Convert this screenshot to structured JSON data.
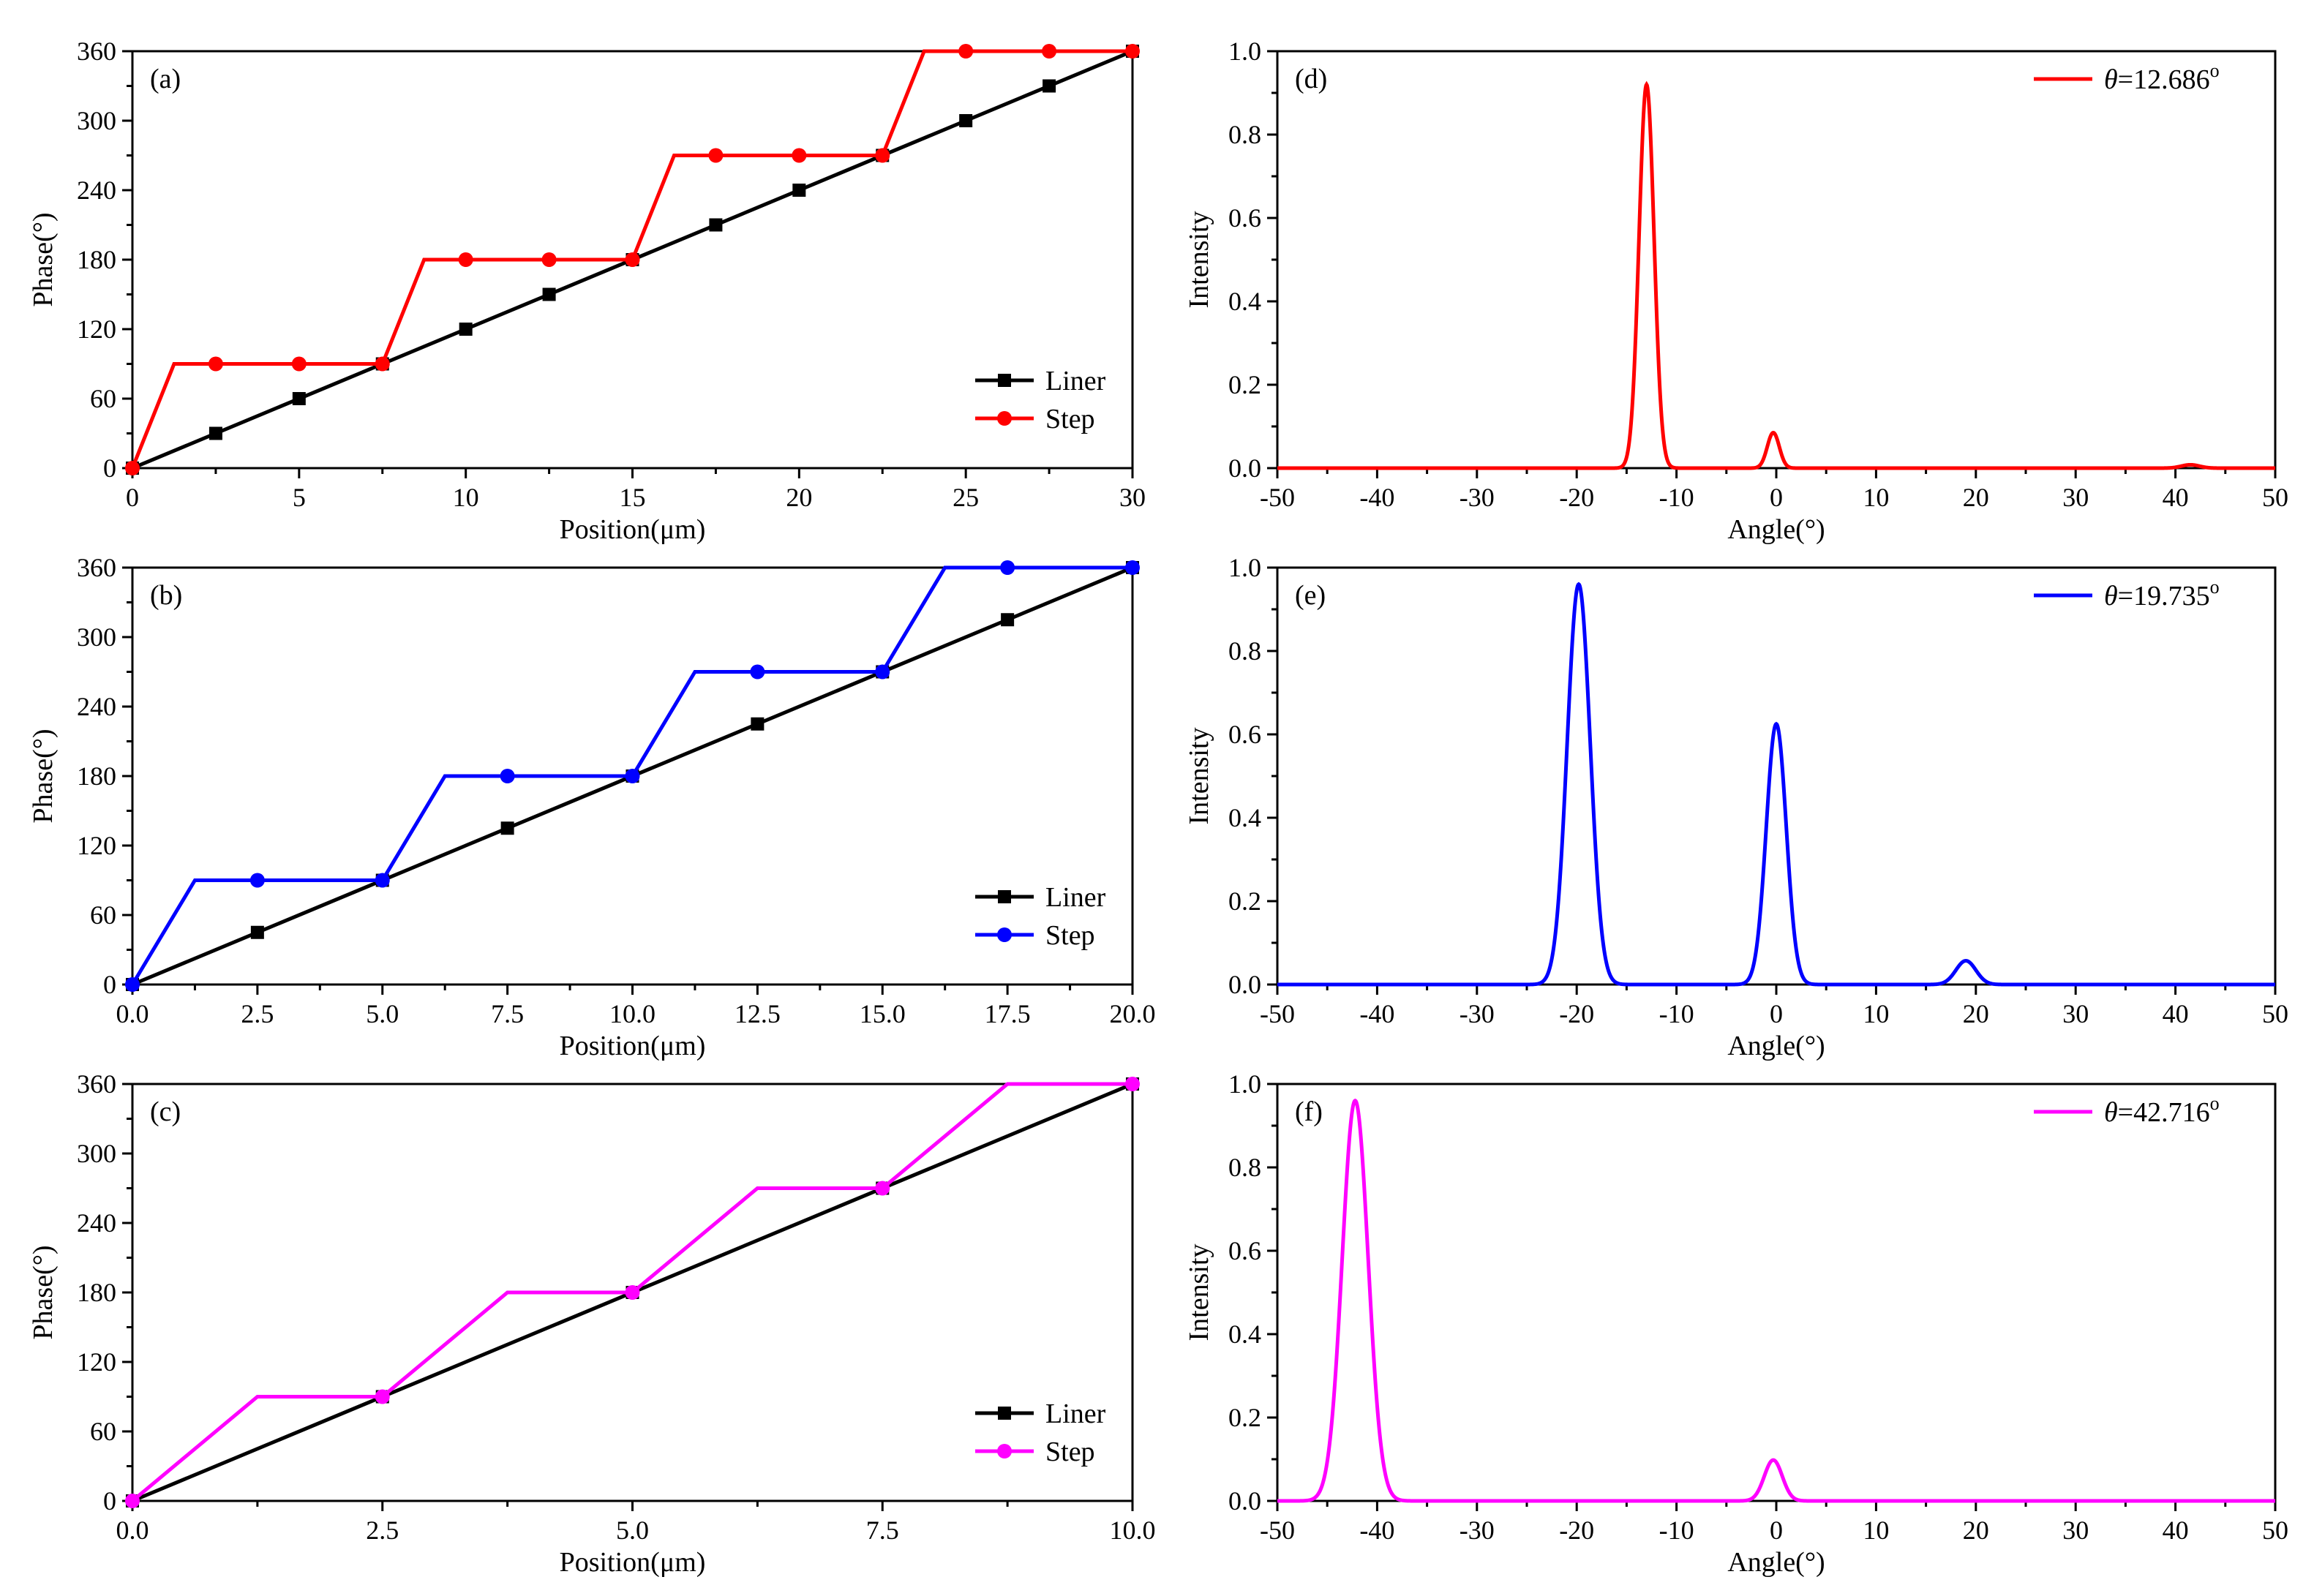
{
  "chart_data": [
    {
      "panel": "(a)",
      "type": "line",
      "xlabel": "Position(μm)",
      "ylabel": "Phase(°)",
      "xlim": [
        0,
        30
      ],
      "ylim": [
        0,
        360
      ],
      "xticks": [
        0,
        5,
        10,
        15,
        20,
        25,
        30
      ],
      "xtick_labels": [
        "0",
        "5",
        "10",
        "15",
        "20",
        "25",
        "30"
      ],
      "yticks": [
        0,
        60,
        120,
        180,
        240,
        300,
        360
      ],
      "ytick_labels": [
        "0",
        "60",
        "120",
        "180",
        "240",
        "300",
        "360"
      ],
      "legend_loc": "lower-right",
      "series": [
        {
          "name": "Liner",
          "color": "#000000",
          "marker": "square",
          "x": [
            0,
            30
          ],
          "y": [
            0,
            360
          ],
          "marker_x": [
            0,
            2.5,
            5,
            7.5,
            10,
            12.5,
            15,
            17.5,
            20,
            22.5,
            25,
            27.5,
            30
          ],
          "marker_y": [
            0,
            30,
            60,
            90,
            120,
            150,
            180,
            210,
            240,
            270,
            300,
            330,
            360
          ]
        },
        {
          "name": "Step",
          "color": "#ff0000",
          "marker": "circle",
          "x": [
            0,
            1.25,
            7.5,
            8.75,
            15,
            16.25,
            22.5,
            23.75,
            30
          ],
          "y": [
            0,
            90,
            90,
            180,
            180,
            270,
            270,
            360,
            360
          ],
          "marker_x": [
            0,
            2.5,
            5,
            7.5,
            10,
            12.5,
            15,
            17.5,
            20,
            22.5,
            25,
            27.5,
            30
          ],
          "marker_y": [
            0,
            90,
            90,
            90,
            180,
            180,
            180,
            270,
            270,
            270,
            360,
            360,
            360
          ]
        }
      ]
    },
    {
      "panel": "(b)",
      "type": "line",
      "xlabel": "Position(μm)",
      "ylabel": "Phase(°)",
      "xlim": [
        0,
        20
      ],
      "ylim": [
        0,
        360
      ],
      "xticks": [
        0,
        2.5,
        5,
        7.5,
        10,
        12.5,
        15,
        17.5,
        20
      ],
      "xtick_labels": [
        "0.0",
        "2.5",
        "5.0",
        "7.5",
        "10.0",
        "12.5",
        "15.0",
        "17.5",
        "20.0"
      ],
      "yticks": [
        0,
        60,
        120,
        180,
        240,
        300,
        360
      ],
      "ytick_labels": [
        "0",
        "60",
        "120",
        "180",
        "240",
        "300",
        "360"
      ],
      "legend_loc": "lower-right",
      "series": [
        {
          "name": "Liner",
          "color": "#000000",
          "marker": "square",
          "x": [
            0,
            20
          ],
          "y": [
            0,
            360
          ],
          "marker_x": [
            0,
            2.5,
            5,
            7.5,
            10,
            12.5,
            15,
            17.5,
            20
          ],
          "marker_y": [
            0,
            45,
            90,
            135,
            180,
            225,
            270,
            315,
            360
          ]
        },
        {
          "name": "Step",
          "color": "#0000ff",
          "marker": "circle",
          "x": [
            0,
            1.25,
            5,
            6.25,
            10,
            11.25,
            15,
            16.25,
            20
          ],
          "y": [
            0,
            90,
            90,
            180,
            180,
            270,
            270,
            360,
            360
          ],
          "marker_x": [
            0,
            2.5,
            5,
            7.5,
            10,
            12.5,
            15,
            17.5,
            20
          ],
          "marker_y": [
            0,
            90,
            90,
            180,
            180,
            270,
            270,
            360,
            360
          ]
        }
      ]
    },
    {
      "panel": "(c)",
      "type": "line",
      "xlabel": "Position(μm)",
      "ylabel": "Phase(°)",
      "xlim": [
        0,
        10
      ],
      "ylim": [
        0,
        360
      ],
      "xticks": [
        0,
        2.5,
        5,
        7.5,
        10
      ],
      "xtick_labels": [
        "0.0",
        "2.5",
        "5.0",
        "7.5",
        "10.0"
      ],
      "yticks": [
        0,
        60,
        120,
        180,
        240,
        300,
        360
      ],
      "ytick_labels": [
        "0",
        "60",
        "120",
        "180",
        "240",
        "300",
        "360"
      ],
      "legend_loc": "lower-right",
      "series": [
        {
          "name": "Liner",
          "color": "#000000",
          "marker": "square",
          "x": [
            0,
            10
          ],
          "y": [
            0,
            360
          ],
          "marker_x": [
            0,
            2.5,
            5,
            7.5,
            10
          ],
          "marker_y": [
            0,
            90,
            180,
            270,
            360
          ]
        },
        {
          "name": "Step",
          "color": "#ff00ff",
          "marker": "circle",
          "x": [
            0,
            1.25,
            2.5,
            3.75,
            5,
            6.25,
            7.5,
            8.75,
            10
          ],
          "y": [
            0,
            90,
            90,
            180,
            180,
            270,
            270,
            360,
            360
          ],
          "marker_x": [
            0,
            2.5,
            5,
            7.5,
            10
          ],
          "marker_y": [
            0,
            90,
            180,
            270,
            360
          ]
        }
      ]
    },
    {
      "panel": "(d)",
      "type": "line",
      "xlabel": "Angle(°)",
      "ylabel": "Intensity",
      "xlim": [
        -50,
        50
      ],
      "ylim": [
        0,
        1.0
      ],
      "xticks": [
        -50,
        -40,
        -30,
        -20,
        -10,
        0,
        10,
        20,
        30,
        40,
        50
      ],
      "xtick_labels": [
        "-50",
        "-40",
        "-30",
        "-20",
        "-10",
        "0",
        "10",
        "20",
        "30",
        "40",
        "50"
      ],
      "yticks": [
        0,
        0.2,
        0.4,
        0.6,
        0.8,
        1.0
      ],
      "ytick_labels": [
        "0.0",
        "0.2",
        "0.4",
        "0.6",
        "0.8",
        "1.0"
      ],
      "legend_loc": "top-right",
      "series": [
        {
          "name": "θ=12.686°",
          "legend_prefix": "θ",
          "legend_suffix": "=12.686",
          "legend_sup": "o",
          "color": "#ff0000",
          "peaks": [
            {
              "center": -13,
              "height": 0.92,
              "width": 0.75
            },
            {
              "center": -0.3,
              "height": 0.085,
              "width": 0.6
            },
            {
              "center": 41.5,
              "height": 0.008,
              "width": 0.9
            }
          ]
        }
      ]
    },
    {
      "panel": "(e)",
      "type": "line",
      "xlabel": "Angle(°)",
      "ylabel": "Intensity",
      "xlim": [
        -50,
        50
      ],
      "ylim": [
        0,
        1.0
      ],
      "xticks": [
        -50,
        -40,
        -30,
        -20,
        -10,
        0,
        10,
        20,
        30,
        40,
        50
      ],
      "xtick_labels": [
        "-50",
        "-40",
        "-30",
        "-20",
        "-10",
        "0",
        "10",
        "20",
        "30",
        "40",
        "50"
      ],
      "yticks": [
        0,
        0.2,
        0.4,
        0.6,
        0.8,
        1.0
      ],
      "ytick_labels": [
        "0.0",
        "0.2",
        "0.4",
        "0.6",
        "0.8",
        "1.0"
      ],
      "legend_loc": "top-right",
      "series": [
        {
          "name": "θ=19.735°",
          "legend_prefix": "θ",
          "legend_suffix": "=19.735",
          "legend_sup": "o",
          "color": "#0000ff",
          "peaks": [
            {
              "center": -19.8,
              "height": 0.96,
              "width": 1.15
            },
            {
              "center": 0,
              "height": 0.625,
              "width": 1.0
            },
            {
              "center": 19,
              "height": 0.057,
              "width": 1.0
            }
          ]
        }
      ]
    },
    {
      "panel": "(f)",
      "type": "line",
      "xlabel": "Angle(°)",
      "ylabel": "Intensity",
      "xlim": [
        -50,
        50
      ],
      "ylim": [
        0,
        1.0
      ],
      "xticks": [
        -50,
        -40,
        -30,
        -20,
        -10,
        0,
        10,
        20,
        30,
        40,
        50
      ],
      "xtick_labels": [
        "-50",
        "-40",
        "-30",
        "-20",
        "-10",
        "0",
        "10",
        "20",
        "30",
        "40",
        "50"
      ],
      "yticks": [
        0,
        0.2,
        0.4,
        0.6,
        0.8,
        1.0
      ],
      "ytick_labels": [
        "0.0",
        "0.2",
        "0.4",
        "0.6",
        "0.8",
        "1.0"
      ],
      "legend_loc": "top-right",
      "series": [
        {
          "name": "θ=42.716°",
          "legend_prefix": "θ",
          "legend_suffix": "=42.716",
          "legend_sup": "o",
          "color": "#ff00ff",
          "peaks": [
            {
              "center": -42.2,
              "height": 0.96,
              "width": 1.3
            },
            {
              "center": -0.3,
              "height": 0.098,
              "width": 0.9
            }
          ]
        }
      ]
    }
  ]
}
